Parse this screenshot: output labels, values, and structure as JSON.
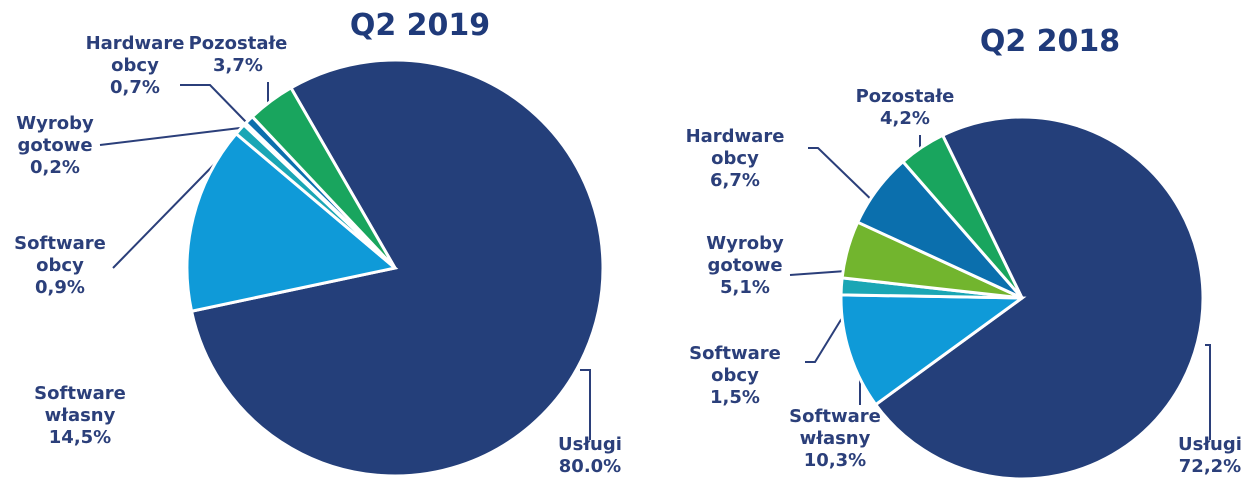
{
  "chart_data": [
    {
      "type": "pie",
      "title": "Q2 2019",
      "categories": [
        "Usługi",
        "Software własny",
        "Software obcy",
        "Wyroby gotowe",
        "Hardware obcy",
        "Pozostałe"
      ],
      "values": [
        80.0,
        14.5,
        0.9,
        0.2,
        0.7,
        3.7
      ],
      "value_labels": [
        "80.0%",
        "14,5%",
        "0,9%",
        "0,2%",
        "0,7%",
        "3,7%"
      ],
      "colors": [
        "#243f7a",
        "#0f9ad8",
        "#1aa6b5",
        "#3fbfae",
        "#0b6fad",
        "#19a55e"
      ]
    },
    {
      "type": "pie",
      "title": "Q2 2018",
      "categories": [
        "Usługi",
        "Software własny",
        "Software obcy",
        "Wyroby gotowe",
        "Hardware obcy",
        "Pozostałe"
      ],
      "values": [
        72.2,
        10.3,
        1.5,
        5.1,
        6.7,
        4.2
      ],
      "value_labels": [
        "72,2%",
        "10,3%",
        "1,5%",
        "5,1%",
        "6,7%",
        "4,2%"
      ],
      "colors": [
        "#243f7a",
        "#0f9ad8",
        "#1aa6b5",
        "#72b52e",
        "#0b6fad",
        "#19a55e"
      ]
    }
  ]
}
